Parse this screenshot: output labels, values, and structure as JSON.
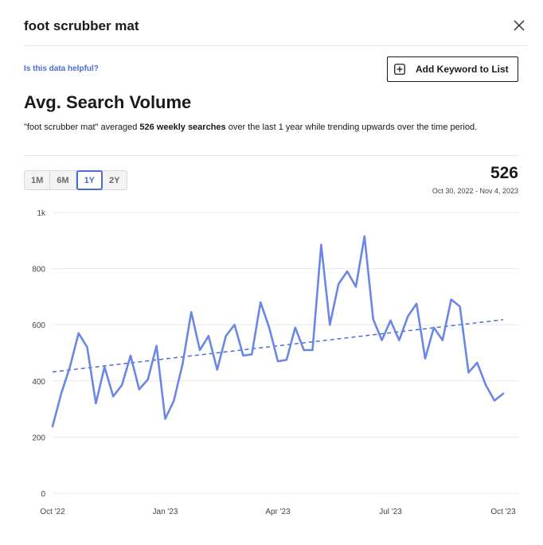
{
  "modal": {
    "title": "foot scrubber mat"
  },
  "links": {
    "helpful": "Is this data helpful?"
  },
  "buttons": {
    "add_keyword": "Add Keyword to List"
  },
  "section": {
    "title": "Avg. Search Volume",
    "summary_prefix": "\"foot scrubber mat\" averaged ",
    "summary_bold": "526 weekly searches",
    "summary_suffix": " over the last 1 year while trending upwards over the time period."
  },
  "range_tabs": [
    "1M",
    "6M",
    "1Y",
    "2Y"
  ],
  "active_tab": "1Y",
  "stat": {
    "value": "526",
    "date_range": "Oct 30, 2022 - Nov 4, 2023"
  },
  "colors": {
    "line": "#6b87e6",
    "trend": "#4a6cd4",
    "active_tab": "#4a6cd4",
    "grid": "#e8e8e8"
  },
  "chart_data": {
    "type": "line",
    "title": "",
    "xlabel": "",
    "ylabel": "",
    "ylim": [
      0,
      1000
    ],
    "y_ticks": [
      {
        "value": 0,
        "label": "0"
      },
      {
        "value": 200,
        "label": "200"
      },
      {
        "value": 400,
        "label": "400"
      },
      {
        "value": 600,
        "label": "600"
      },
      {
        "value": 800,
        "label": "800"
      },
      {
        "value": 1000,
        "label": "1k"
      }
    ],
    "x_ticks": [
      {
        "index": 0,
        "label": "Oct '22"
      },
      {
        "index": 13,
        "label": "Jan '23"
      },
      {
        "index": 26,
        "label": "Apr '23"
      },
      {
        "index": 39,
        "label": "Jul '23"
      },
      {
        "index": 52,
        "label": "Oct '23"
      }
    ],
    "grid": true,
    "series": [
      {
        "values": [
          238,
          355,
          450,
          570,
          520,
          320,
          450,
          345,
          385,
          490,
          370,
          405,
          525,
          265,
          330,
          460,
          645,
          510,
          560,
          440,
          560,
          600,
          490,
          495,
          680,
          590,
          470,
          475,
          590,
          510,
          510,
          885,
          600,
          745,
          790,
          735,
          915,
          620,
          545,
          615,
          545,
          630,
          675,
          480,
          590,
          545,
          690,
          665,
          430,
          465,
          385,
          330,
          355
        ]
      }
    ],
    "trend": {
      "start": 432,
      "end": 618
    }
  }
}
